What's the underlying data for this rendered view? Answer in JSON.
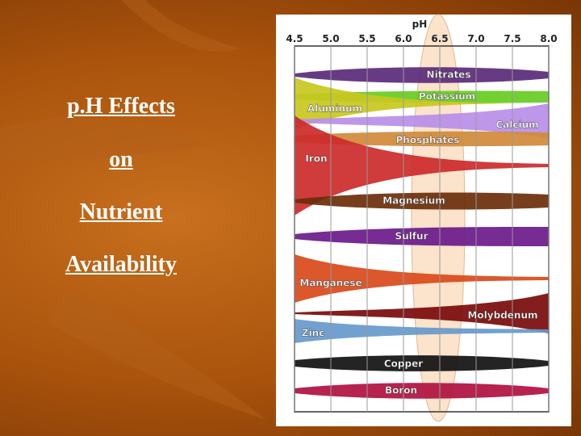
{
  "title": [
    "p.H Effects",
    "on",
    "Nutrient",
    "Availability"
  ],
  "chart": {
    "axis_title": "pH",
    "ticks": [
      "4.5",
      "5.0",
      "5.5",
      "6.0",
      "6.5",
      "7.0",
      "7.5",
      "8.0"
    ],
    "nutrients": [
      {
        "label": "Nitrates",
        "color": "#5a2a7a"
      },
      {
        "label": "Potassium",
        "color": "#66cc22"
      },
      {
        "label": "Aluminum",
        "color": "#c8c820"
      },
      {
        "label": "Calcium",
        "color": "#b98ee8"
      },
      {
        "label": "Phosphates",
        "color": "#d08a3a"
      },
      {
        "label": "Iron",
        "color": "#cc2a2a"
      },
      {
        "label": "Magnesium",
        "color": "#6b2e0a"
      },
      {
        "label": "Sulfur",
        "color": "#6a1a8a"
      },
      {
        "label": "Manganese",
        "color": "#d94a1a"
      },
      {
        "label": "Molybdenum",
        "color": "#7a0a0a"
      },
      {
        "label": "Zinc",
        "color": "#6699cc"
      },
      {
        "label": "Copper",
        "color": "#111111"
      },
      {
        "label": "Boron",
        "color": "#b01040"
      }
    ]
  }
}
